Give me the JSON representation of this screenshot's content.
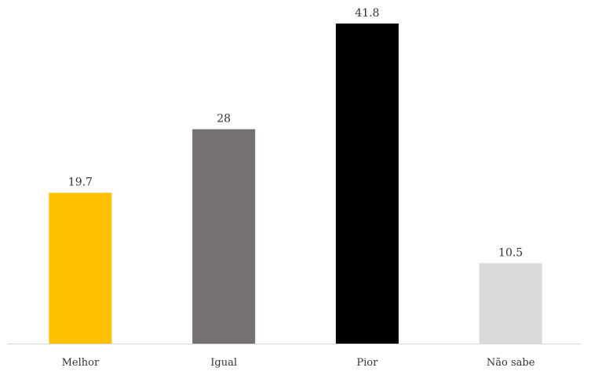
{
  "chart_data": {
    "type": "bar",
    "title": "",
    "xlabel": "",
    "ylabel": "",
    "categories": [
      "Melhor",
      "Igual",
      "Pior",
      "Não sabe"
    ],
    "values": [
      19.7,
      28,
      41.8,
      10.5
    ],
    "data_labels": [
      "19.7",
      "28",
      "41.8",
      "10.5"
    ],
    "colors": [
      "#FFC000",
      "#767171",
      "#000000",
      "#D9D9D9"
    ],
    "ylim": [
      0,
      41.8
    ],
    "grid": false,
    "legend": "none",
    "axis_color": "#D9D9D9"
  }
}
